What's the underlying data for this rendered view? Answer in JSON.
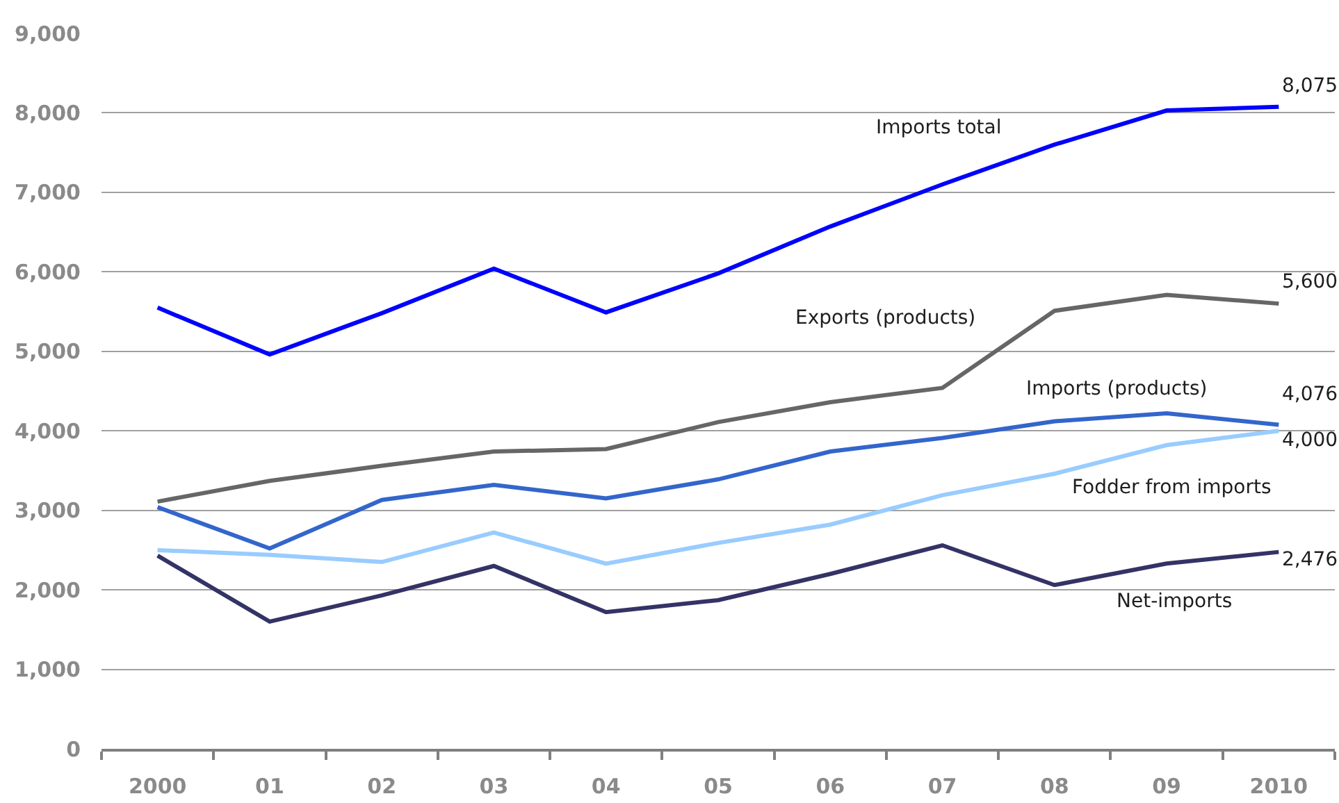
{
  "chart_data": {
    "type": "line",
    "categories": [
      "2000",
      "01",
      "02",
      "03",
      "04",
      "05",
      "06",
      "07",
      "08",
      "09",
      "2010"
    ],
    "ylim": [
      0,
      9000
    ],
    "yticks": [
      0,
      {
        "value": 1000,
        "label": "1,000"
      },
      {
        "value": 2000,
        "label": "2,000"
      },
      {
        "value": 3000,
        "label": "3,000"
      },
      {
        "value": 4000,
        "label": "4,000"
      },
      {
        "value": 5000,
        "label": "5,000"
      },
      {
        "value": 6000,
        "label": "6,000"
      },
      {
        "value": 7000,
        "label": "7,000"
      },
      {
        "value": 8000,
        "label": "8,000"
      },
      {
        "value": 9000,
        "label": "9,000"
      }
    ],
    "grid": "y",
    "series": [
      {
        "name": "Imports total",
        "color": "#0000ff",
        "values": [
          5550,
          4960,
          5480,
          6040,
          5490,
          5980,
          6570,
          7100,
          7600,
          8030,
          8075
        ],
        "value_labels": [
          null,
          null,
          null,
          null,
          null,
          null,
          null,
          null,
          null,
          null,
          "8,075"
        ]
      },
      {
        "name": "Exports (products)",
        "color": "#666666",
        "values": [
          3110,
          3370,
          3560,
          3740,
          3770,
          4110,
          4360,
          4540,
          5510,
          5710,
          5600
        ],
        "value_labels": [
          null,
          null,
          null,
          null,
          null,
          null,
          null,
          null,
          null,
          null,
          "5,600"
        ]
      },
      {
        "name": "Imports (products)",
        "color": "#3366cc",
        "values": [
          3040,
          2520,
          3130,
          3320,
          3150,
          3390,
          3740,
          3910,
          4120,
          4220,
          4076
        ],
        "value_labels": [
          null,
          null,
          null,
          null,
          null,
          null,
          null,
          null,
          null,
          null,
          "4,076"
        ]
      },
      {
        "name": "Fodder from imports",
        "color": "#99ccff",
        "values": [
          2500,
          2440,
          2350,
          2720,
          2330,
          2590,
          2820,
          3190,
          3460,
          3820,
          4000
        ],
        "value_labels": [
          null,
          null,
          null,
          null,
          null,
          null,
          null,
          null,
          null,
          null,
          "4,000"
        ]
      },
      {
        "name": "Net-imports",
        "color": "#333366",
        "values": [
          2430,
          1600,
          1930,
          2300,
          1720,
          1870,
          2200,
          2560,
          2060,
          2330,
          2476
        ],
        "value_labels": [
          null,
          null,
          null,
          null,
          null,
          null,
          null,
          null,
          null,
          null,
          "2,476"
        ]
      }
    ]
  }
}
